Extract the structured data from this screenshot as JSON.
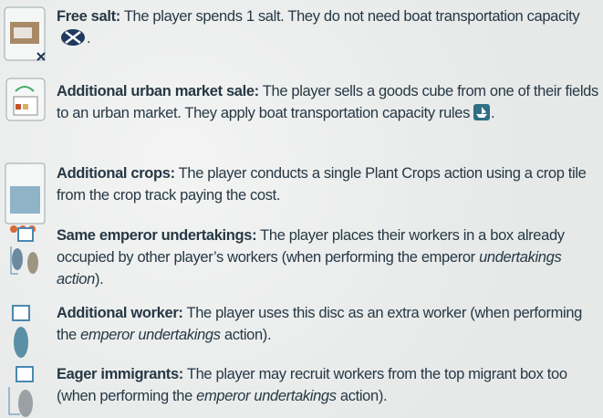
{
  "items": [
    {
      "title": "Free salt:",
      "text": [
        {
          "t": "The player spends 1 salt. They do not need boat transportation capacity"
        },
        {
          "t": "."
        }
      ]
    },
    {
      "title": "Additional urban market sale:",
      "text": [
        {
          "t": "The player sells a goods cube from one of their fields to an urban market. They apply boat transportation capacity rules"
        },
        {
          "t": "."
        }
      ]
    },
    {
      "title": "Additional crops:",
      "text": [
        {
          "t": "The player conducts a single Plant Crops action using a crop tile from the crop track paying the cost."
        }
      ]
    },
    {
      "title": "Same emperor undertakings:",
      "text": [
        {
          "t": "The player places their workers in a box already occupied by other player’s workers (when performing the emperor "
        },
        {
          "t": "undertakings action",
          "italic": true
        },
        {
          "t": ")."
        }
      ]
    },
    {
      "title": "Additional worker:",
      "text": [
        {
          "t": "The player uses this disc as an extra worker (when performing the "
        },
        {
          "t": "emperor undertakings",
          "italic": true
        },
        {
          "t": " action)."
        }
      ]
    },
    {
      "title": "Eager immigrants:",
      "text": [
        {
          "t": "The player may recruit workers from the top migrant box too (when performing the "
        },
        {
          "t": "emperor undertakings",
          "italic": true
        },
        {
          "t": " action)."
        }
      ]
    }
  ]
}
